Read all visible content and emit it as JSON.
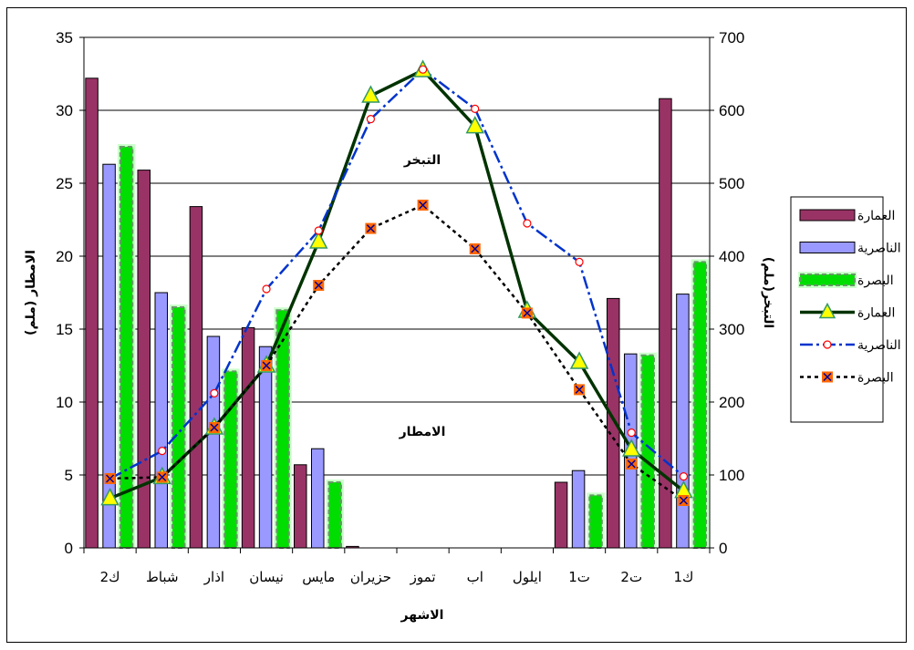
{
  "chart_data": {
    "type": "bar",
    "categories": [
      "ك2",
      "شباط",
      "اذار",
      "نيسان",
      "مايس",
      "حزيران",
      "تموز",
      "اب",
      "ايلول",
      "ت1",
      "ت2",
      "ك1"
    ],
    "xlabel": "الاشهر",
    "ylabel_left": "الامطار (ملم)",
    "ylabel_right": "التبخر(ملم)",
    "ylim_left": [
      0,
      35
    ],
    "ylim_right": [
      0,
      700
    ],
    "yticks_left": [
      0,
      5,
      10,
      15,
      20,
      25,
      30,
      35
    ],
    "yticks_right": [
      0,
      100,
      200,
      300,
      400,
      500,
      600,
      700
    ],
    "annotations": [
      "التبخر",
      "الامطار"
    ],
    "legend_position": "right",
    "bar_series": [
      {
        "name": "العمارة",
        "color": "#993366",
        "values": [
          32.2,
          25.9,
          23.4,
          15.1,
          5.7,
          0.1,
          0,
          0,
          0,
          4.5,
          17.1,
          30.8
        ]
      },
      {
        "name": "الناصرية",
        "color": "#9999ff",
        "values": [
          26.3,
          17.5,
          14.5,
          13.8,
          6.8,
          0,
          0,
          0,
          0,
          5.3,
          13.3,
          17.4
        ]
      },
      {
        "name": "البصرة",
        "color": "#00dd00",
        "values": [
          27.5,
          16.5,
          12.1,
          16.3,
          4.5,
          0,
          0,
          0,
          0,
          3.6,
          13.2,
          19.6
        ]
      }
    ],
    "line_series": [
      {
        "name": "العمارة",
        "color": "#003300",
        "marker": "triangle",
        "values": [
          68,
          97,
          165,
          250,
          420,
          620,
          655,
          578,
          325,
          255,
          135,
          78
        ]
      },
      {
        "name": "الناصرية",
        "color": "#0033cc",
        "marker": "circle",
        "values": [
          95,
          133,
          212,
          355,
          435,
          588,
          656,
          602,
          445,
          392,
          158,
          98
        ]
      },
      {
        "name": "البصرة",
        "color": "#000000",
        "marker": "x-square",
        "values": [
          95,
          97,
          165,
          250,
          360,
          438,
          470,
          410,
          322,
          217,
          115,
          65
        ]
      }
    ]
  }
}
